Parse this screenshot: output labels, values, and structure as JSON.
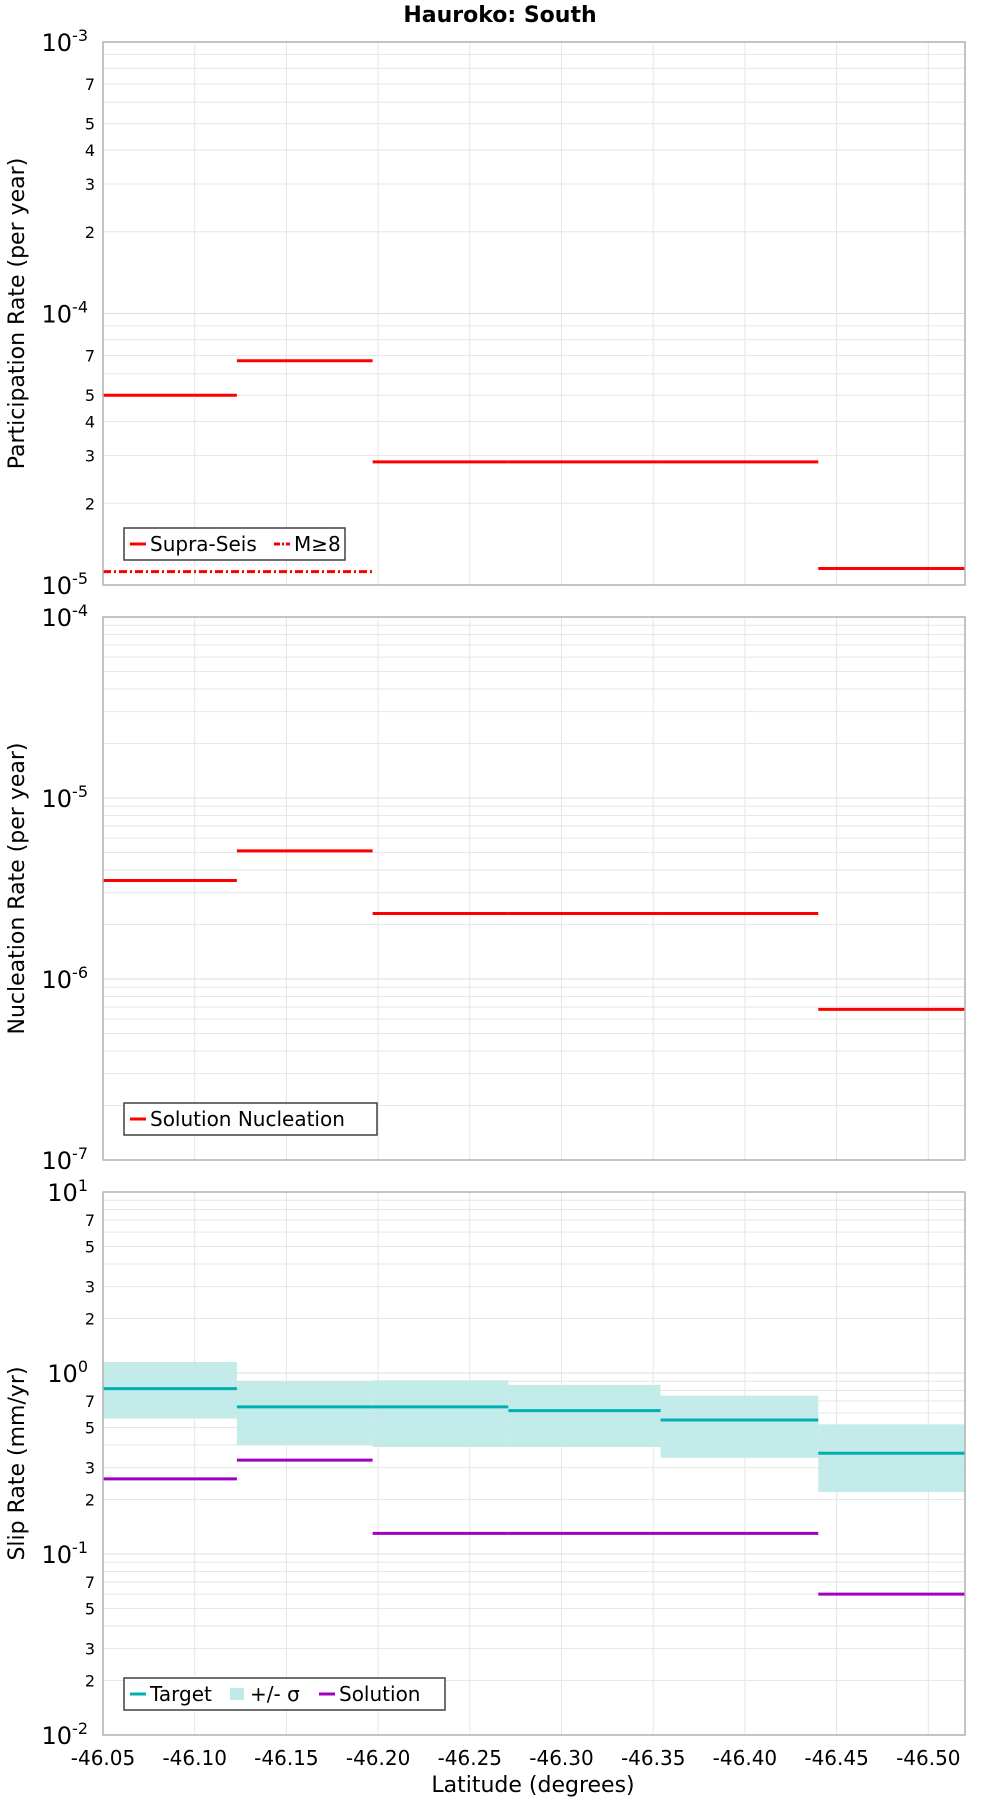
{
  "title": "Hauroko: South",
  "xlabel": "Latitude (degrees)",
  "xticks": [
    "-46.05",
    "-46.10",
    "-46.15",
    "-46.20",
    "-46.25",
    "-46.30",
    "-46.35",
    "-46.40",
    "-46.45",
    "-46.50"
  ],
  "colors": {
    "red": "#ff0000",
    "target": "#00b0b0",
    "band": "#bfeae8",
    "solution": "#a000c0",
    "grid": "#e6e6e6",
    "frame": "#b0b0b0"
  },
  "chart_data": [
    {
      "type": "line",
      "ylabel": "Participation Rate (per year)",
      "yscale": "log",
      "ylim": [
        1e-05,
        0.001
      ],
      "xlim": [
        -46.05,
        -46.52
      ],
      "ytick_labels": {
        "major": [
          "10^-3",
          "10^-4",
          "10^-5"
        ],
        "minor": [
          "7",
          "5",
          "4",
          "3",
          "2",
          "7",
          "5",
          "4",
          "3",
          "2"
        ]
      },
      "legend": {
        "position": "bottom-left",
        "items": [
          "Supra-Seis",
          "M≥8"
        ]
      },
      "series": [
        {
          "name": "Supra-Seis",
          "style": "solid",
          "segments": [
            {
              "x0": -46.05,
              "x1": -46.123,
              "y": 5e-05
            },
            {
              "x0": -46.123,
              "x1": -46.197,
              "y": 6.7e-05
            },
            {
              "x0": -46.197,
              "x1": -46.271,
              "y": 2.84e-05
            },
            {
              "x0": -46.271,
              "x1": -46.354,
              "y": 2.84e-05
            },
            {
              "x0": -46.354,
              "x1": -46.44,
              "y": 2.84e-05
            },
            {
              "x0": -46.44,
              "x1": -46.52,
              "y": 1.15e-05
            }
          ]
        },
        {
          "name": "M≥8",
          "style": "dash-dot",
          "segments": [
            {
              "x0": -46.05,
              "x1": -46.197,
              "y": 1.12e-05
            }
          ]
        }
      ]
    },
    {
      "type": "line",
      "ylabel": "Nucleation Rate (per year)",
      "yscale": "log",
      "ylim": [
        1e-07,
        0.0001
      ],
      "xlim": [
        -46.05,
        -46.52
      ],
      "ytick_labels": {
        "major": [
          "10^-4",
          "10^-5",
          "10^-6",
          "10^-7"
        ]
      },
      "legend": {
        "position": "bottom-left",
        "items": [
          "Solution Nucleation"
        ]
      },
      "series": [
        {
          "name": "Solution Nucleation",
          "style": "solid",
          "segments": [
            {
              "x0": -46.05,
              "x1": -46.123,
              "y": 3.5e-06
            },
            {
              "x0": -46.123,
              "x1": -46.197,
              "y": 5.1e-06
            },
            {
              "x0": -46.197,
              "x1": -46.271,
              "y": 2.3e-06
            },
            {
              "x0": -46.271,
              "x1": -46.354,
              "y": 2.3e-06
            },
            {
              "x0": -46.354,
              "x1": -46.44,
              "y": 2.3e-06
            },
            {
              "x0": -46.44,
              "x1": -46.52,
              "y": 6.8e-07
            }
          ]
        }
      ]
    },
    {
      "type": "line",
      "ylabel": "Slip Rate (mm/yr)",
      "yscale": "log",
      "ylim": [
        0.01,
        10
      ],
      "xlim": [
        -46.05,
        -46.52
      ],
      "ytick_labels": {
        "major": [
          "10^1",
          "10^0",
          "10^-1",
          "10^-2"
        ],
        "minor": [
          "7",
          "5",
          "3",
          "2",
          "7",
          "5",
          "3",
          "2",
          "7",
          "5",
          "3",
          "2"
        ]
      },
      "legend": {
        "position": "bottom-left",
        "items": [
          "Target",
          "+/- σ",
          "Solution"
        ]
      },
      "series": [
        {
          "name": "Target",
          "style": "solid",
          "segments": [
            {
              "x0": -46.05,
              "x1": -46.123,
              "y": 0.82,
              "lo": 0.56,
              "hi": 1.15
            },
            {
              "x0": -46.123,
              "x1": -46.197,
              "y": 0.65,
              "lo": 0.4,
              "hi": 0.9
            },
            {
              "x0": -46.197,
              "x1": -46.271,
              "y": 0.65,
              "lo": 0.39,
              "hi": 0.91
            },
            {
              "x0": -46.271,
              "x1": -46.354,
              "y": 0.62,
              "lo": 0.39,
              "hi": 0.86
            },
            {
              "x0": -46.354,
              "x1": -46.44,
              "y": 0.55,
              "lo": 0.34,
              "hi": 0.75
            },
            {
              "x0": -46.44,
              "x1": -46.52,
              "y": 0.36,
              "lo": 0.22,
              "hi": 0.52
            }
          ]
        },
        {
          "name": "Solution",
          "style": "solid",
          "segments": [
            {
              "x0": -46.05,
              "x1": -46.123,
              "y": 0.26
            },
            {
              "x0": -46.123,
              "x1": -46.197,
              "y": 0.33
            },
            {
              "x0": -46.197,
              "x1": -46.271,
              "y": 0.13
            },
            {
              "x0": -46.271,
              "x1": -46.354,
              "y": 0.13
            },
            {
              "x0": -46.354,
              "x1": -46.44,
              "y": 0.13
            },
            {
              "x0": -46.44,
              "x1": -46.52,
              "y": 0.06
            }
          ]
        }
      ]
    }
  ]
}
